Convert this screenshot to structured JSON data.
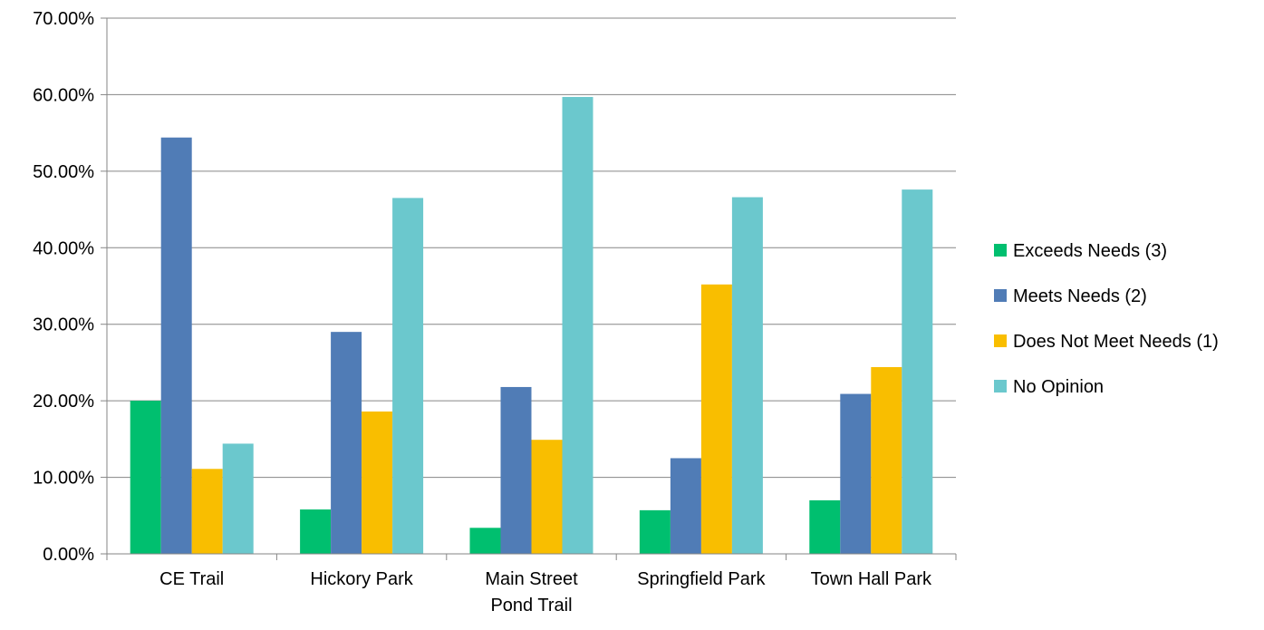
{
  "chart_data": {
    "type": "bar",
    "title": "",
    "xlabel": "",
    "ylabel": "",
    "ylim": [
      0,
      70
    ],
    "y_ticks": [
      "0.00%",
      "10.00%",
      "20.00%",
      "30.00%",
      "40.00%",
      "50.00%",
      "60.00%",
      "70.00%"
    ],
    "y_tick_values": [
      0,
      10,
      20,
      30,
      40,
      50,
      60,
      70
    ],
    "unit": "%",
    "grid": true,
    "legend_position": "right",
    "categories": [
      [
        "CE Trail"
      ],
      [
        "Hickory Park"
      ],
      [
        "Main Street",
        "Pond Trail"
      ],
      [
        "Springfield Park"
      ],
      [
        "Town Hall Park"
      ]
    ],
    "series": [
      {
        "name": "Exceeds Needs (3)",
        "color": "#00BF6F",
        "values": [
          20.0,
          5.8,
          3.4,
          5.7,
          7.0
        ]
      },
      {
        "name": "Meets Needs (2)",
        "color": "#507CB6",
        "values": [
          54.4,
          29.0,
          21.8,
          12.5,
          20.9
        ]
      },
      {
        "name": "Does Not Meet Needs (1)",
        "color": "#F9BE00",
        "values": [
          11.1,
          18.6,
          14.9,
          35.2,
          24.4
        ]
      },
      {
        "name": "No Opinion",
        "color": "#6BC8CD",
        "values": [
          14.4,
          46.5,
          59.7,
          46.6,
          47.6
        ]
      }
    ]
  }
}
